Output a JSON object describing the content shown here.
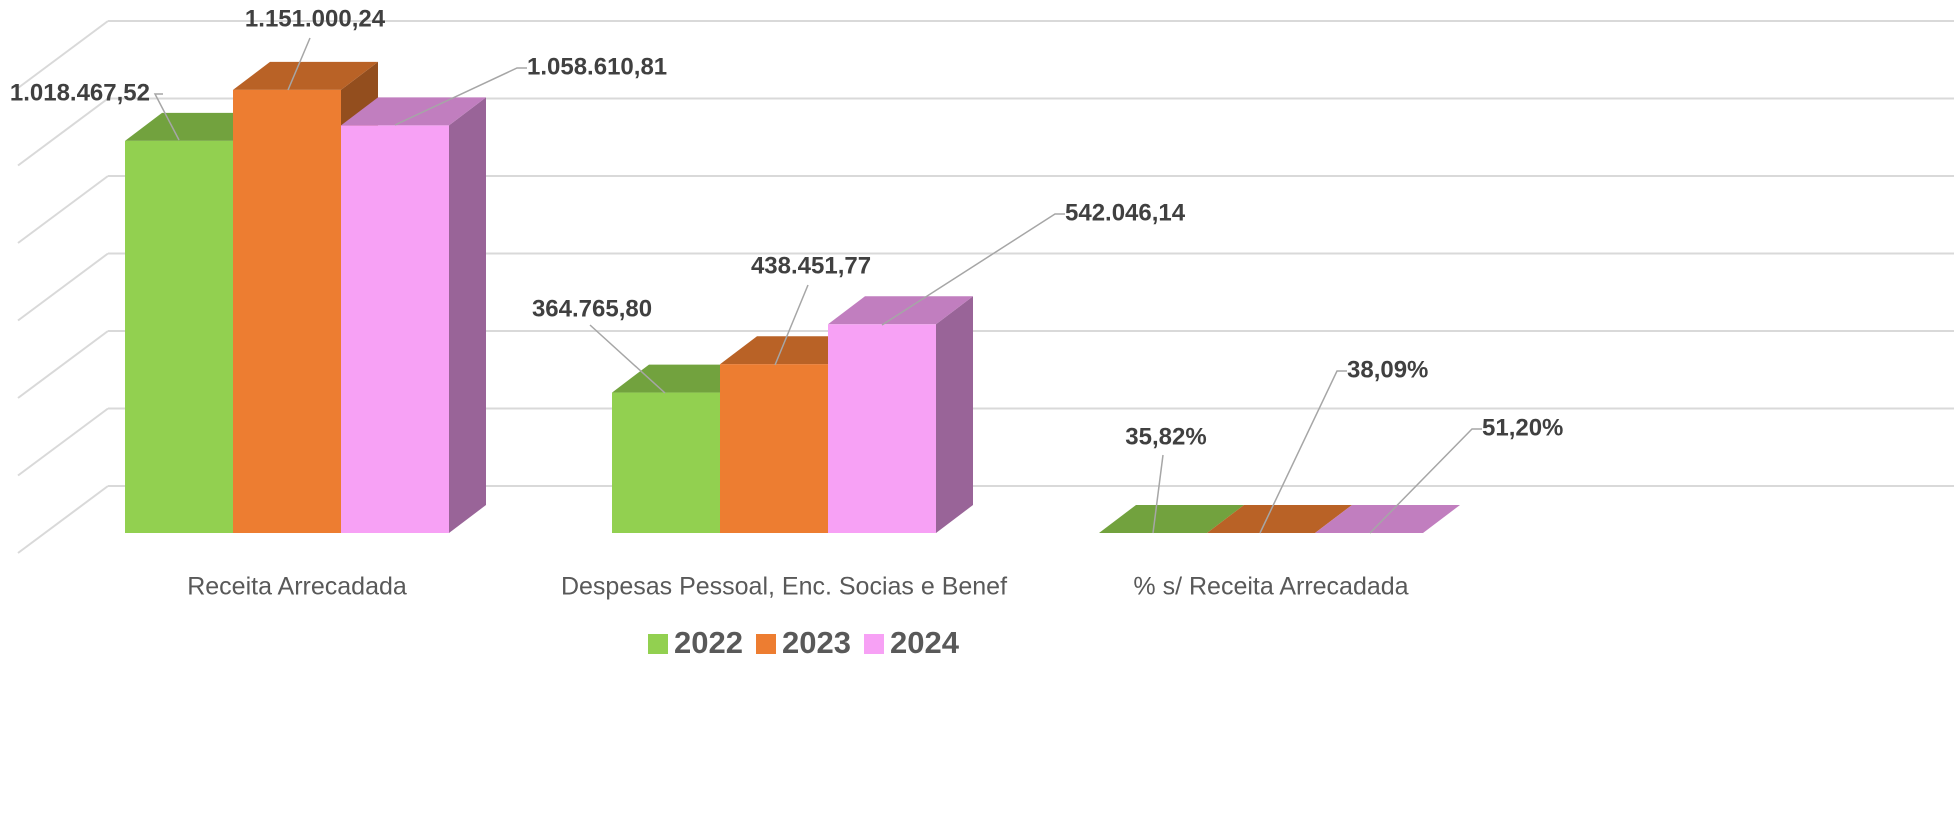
{
  "chart_data": {
    "type": "bar3d",
    "categories": [
      "Receita Arrecadada",
      "Despesas Pessoal, Enc. Socias e Benef",
      "% s/ Receita Arrecadada"
    ],
    "series": [
      {
        "name": "2022",
        "color": "#92d050",
        "values": [
          1018467.52,
          364765.8,
          35.82
        ],
        "value_labels": [
          "1.018.467,52",
          "364.765,80",
          "35,82%"
        ]
      },
      {
        "name": "2023",
        "color": "#ed7d31",
        "values": [
          1151000.24,
          438451.77,
          38.09
        ],
        "value_labels": [
          "1.151.000,24",
          "438.451,77",
          "38,09%"
        ]
      },
      {
        "name": "2024",
        "color": "#f7a1f5",
        "values": [
          1058610.81,
          542046.14,
          51.2
        ],
        "value_labels": [
          "1.058.610,81",
          "542.046,14",
          "51,20%"
        ]
      }
    ],
    "ylim": [
      0,
      1200000
    ],
    "yticks": [
      0,
      200000,
      400000,
      600000,
      800000,
      1000000,
      1200000
    ],
    "grid": true,
    "legend": "bottom"
  }
}
